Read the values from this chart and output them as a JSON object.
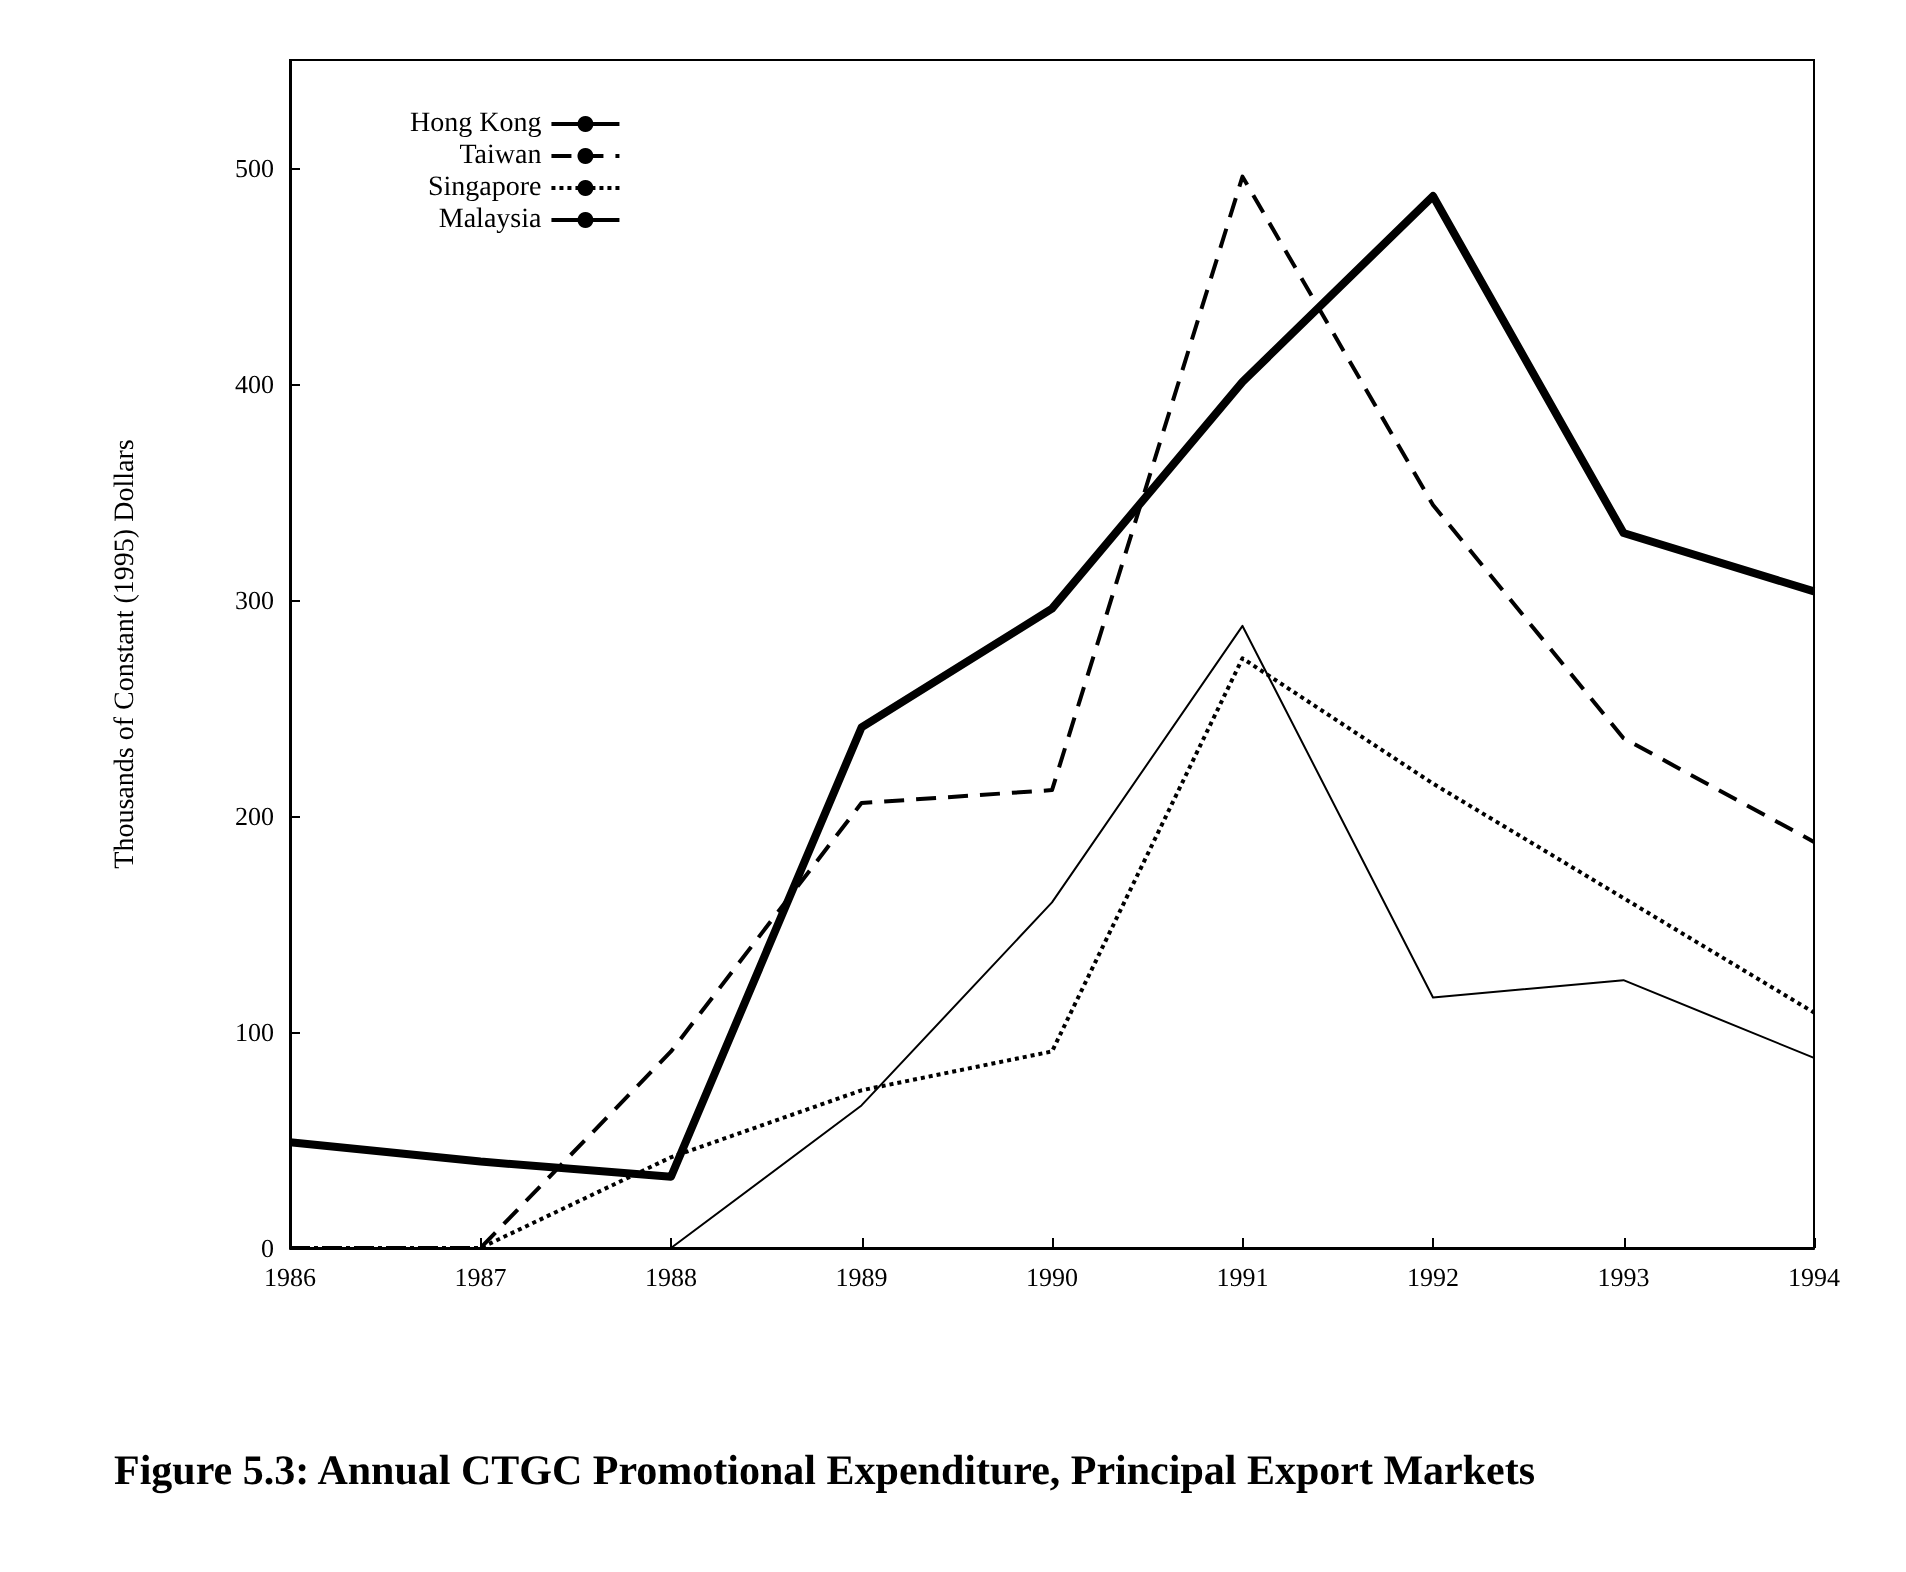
{
  "chart_data": {
    "type": "line",
    "title": "Figure 5.3: Annual CTGC Promotional Expenditure, Principal Export Markets",
    "ylabel": "Thousands of Constant (1995) Dollars",
    "x": [
      1986,
      1987,
      1988,
      1989,
      1990,
      1991,
      1992,
      1993,
      1994
    ],
    "xlim": [
      1986,
      1994
    ],
    "xticks": [
      1986,
      1987,
      1988,
      1989,
      1990,
      1991,
      1992,
      1993,
      1994
    ],
    "ylim": [
      0,
      550
    ],
    "yticks": [
      0,
      100,
      200,
      300,
      400,
      500
    ],
    "grid": false,
    "legend": "top left",
    "marker": "none",
    "series": [
      {
        "name": "Hong Kong",
        "color": "#000000",
        "line_style": "solid",
        "values": [
          49,
          40,
          33,
          241,
          296,
          401,
          487,
          331,
          304
        ]
      },
      {
        "name": "Taiwan",
        "color": "#000000",
        "line_style": "dashed",
        "values": [
          0,
          0,
          91,
          206,
          212,
          496,
          344,
          236,
          188
        ]
      },
      {
        "name": "Singapore",
        "color": "#000000",
        "line_style": "dotted",
        "values": [
          0,
          0,
          42,
          73,
          91,
          273,
          215,
          162,
          109
        ]
      },
      {
        "name": "Malaysia",
        "color": "#000000",
        "line_style": "solid",
        "values": [
          0,
          0,
          0,
          66,
          160,
          288,
          116,
          124,
          88
        ]
      }
    ]
  }
}
